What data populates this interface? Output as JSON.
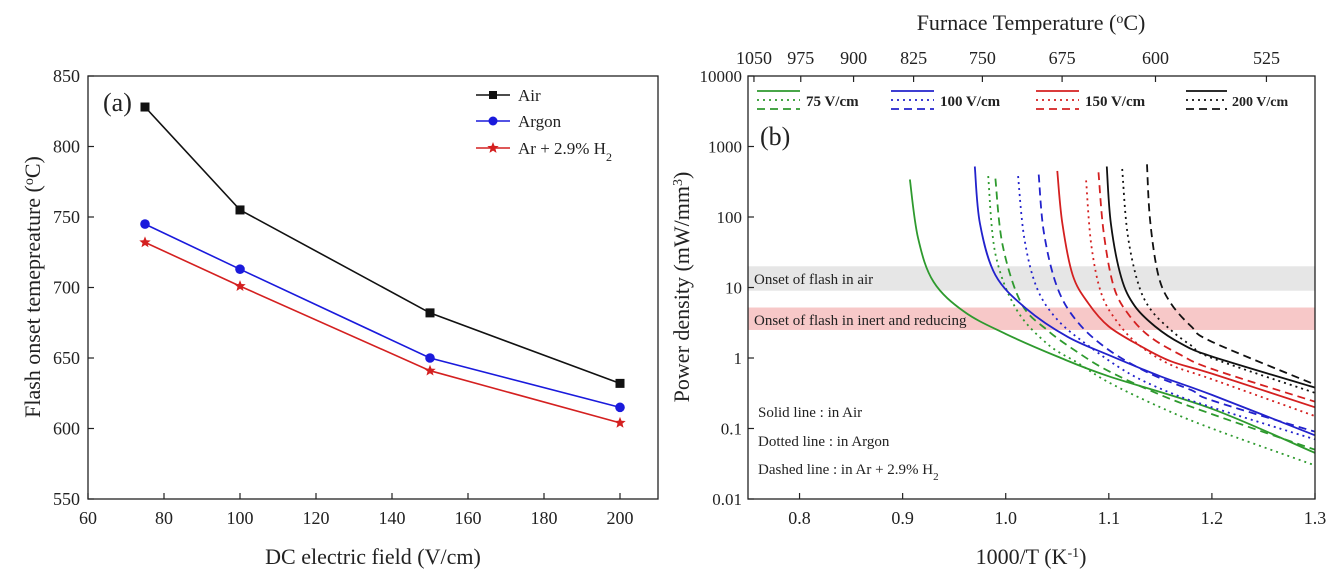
{
  "chart_data": [
    {
      "type": "line",
      "panel_label": "(a)",
      "xlabel": "DC electric field (V/cm)",
      "ylabel": "Flash onset temepreature (°C)",
      "ylabel_parts": {
        "before": "Flash onset temepreature (",
        "sup": "o",
        "after": "C)"
      },
      "xlim": [
        60,
        210
      ],
      "ylim": [
        550,
        850
      ],
      "xticks": [
        60,
        80,
        100,
        120,
        140,
        160,
        180,
        200
      ],
      "yticks": [
        550,
        600,
        650,
        700,
        750,
        800,
        850
      ],
      "x": [
        75,
        100,
        150,
        200
      ],
      "series": [
        {
          "name": "Air",
          "legend_label": "Air",
          "color": "#111111",
          "marker": "square",
          "values": [
            828,
            755,
            682,
            632
          ]
        },
        {
          "name": "Argon",
          "legend_label": "Argon",
          "color": "#1a1adc",
          "marker": "circle",
          "values": [
            745,
            713,
            650,
            615
          ]
        },
        {
          "name": "Ar + 2.9% H2",
          "legend_label": "Ar + 2.9% H",
          "legend_sub": "2",
          "color": "#d42020",
          "marker": "star",
          "values": [
            732,
            701,
            641,
            604
          ]
        }
      ]
    },
    {
      "type": "line",
      "panel_label": "(b)",
      "yscale": "log",
      "xlabel": "1000/T (K-1)",
      "xlabel_parts": {
        "before": "1000/T (K",
        "sup": "-1",
        "after": ")"
      },
      "ylabel": "Power density (mW/mm3)",
      "ylabel_parts": {
        "before": "Power density (mW/mm",
        "sup": "3",
        "after": ")"
      },
      "top_xlabel": "Furnace Temperature (°C)",
      "top_xlabel_parts": {
        "before": "Furnace Temperature (",
        "sup": "o",
        "after": "C)"
      },
      "xlim": [
        0.75,
        1.3
      ],
      "ylim": [
        0.01,
        10000
      ],
      "xticks": [
        0.8,
        0.9,
        1.0,
        1.1,
        1.2,
        1.3
      ],
      "xtick_labels": [
        "0.8",
        "0.9",
        "1.0",
        "1.1",
        "1.2",
        "1.3"
      ],
      "yticks": [
        0.01,
        0.1,
        1,
        10,
        100,
        1000,
        10000
      ],
      "ytick_labels": [
        "0.01",
        "0.1",
        "1",
        "10",
        "100",
        "1000",
        "10000"
      ],
      "top_ticks_celsius": [
        1050,
        975,
        900,
        825,
        750,
        675,
        600,
        525
      ],
      "bands": [
        {
          "label": "Onset of flash in air",
          "y_range": [
            9,
            20
          ],
          "color": "#e6e6e6"
        },
        {
          "label": "Onset of flash in inert and reducing",
          "y_range": [
            2.5,
            5.2
          ],
          "color": "#f7c8c8"
        }
      ],
      "field_legend": [
        {
          "label": "75 V/cm",
          "color": "#2e9a2e"
        },
        {
          "label": "100 V/cm",
          "color": "#2222cc"
        },
        {
          "label": "150 V/cm",
          "color": "#d42020"
        },
        {
          "label": "200 V/cm",
          "color": "#111111"
        }
      ],
      "style_notes": [
        {
          "text": "Solid line : in Air"
        },
        {
          "text": "Dotted line : in Argon"
        },
        {
          "text": "Dashed line : in Ar + 2.9% H2",
          "before": "Dashed line : in Ar + 2.9% H",
          "sub": "2"
        }
      ],
      "series": [
        {
          "name": "75 V/cm, Air",
          "color": "#2e9a2e",
          "style": "solid",
          "x": [
            0.907,
            0.915,
            0.93,
            0.96,
            1.0,
            1.05,
            1.1,
            1.2,
            1.3
          ],
          "y": [
            340,
            50,
            12,
            4.5,
            2.2,
            1.05,
            0.55,
            0.19,
            0.045
          ]
        },
        {
          "name": "75 V/cm, Argon",
          "color": "#2e9a2e",
          "style": "dotted",
          "x": [
            0.983,
            0.99,
            1.01,
            1.04,
            1.07,
            1.1,
            1.15,
            1.2,
            1.3
          ],
          "y": [
            380,
            30,
            5,
            1.6,
            0.85,
            0.45,
            0.2,
            0.1,
            0.03
          ]
        },
        {
          "name": "75 V/cm, Ar + 2.9% H2",
          "color": "#2e9a2e",
          "style": "dashed",
          "x": [
            0.99,
            0.997,
            1.015,
            1.04,
            1.07,
            1.1,
            1.15,
            1.2,
            1.3
          ],
          "y": [
            350,
            40,
            6,
            2.5,
            1.2,
            0.65,
            0.3,
            0.16,
            0.05
          ]
        },
        {
          "name": "100 V/cm, Air",
          "color": "#2222cc",
          "style": "solid",
          "x": [
            0.97,
            0.975,
            0.99,
            1.02,
            1.06,
            1.1,
            1.15,
            1.2,
            1.3
          ],
          "y": [
            520,
            80,
            15,
            5,
            2,
            1.1,
            0.55,
            0.3,
            0.08
          ]
        },
        {
          "name": "100 V/cm, Argon",
          "color": "#2222cc",
          "style": "dotted",
          "x": [
            1.012,
            1.018,
            1.03,
            1.05,
            1.08,
            1.12,
            1.16,
            1.2,
            1.3
          ],
          "y": [
            380,
            50,
            10,
            3.5,
            1.5,
            0.6,
            0.32,
            0.2,
            0.07
          ]
        },
        {
          "name": "100 V/cm, Ar + 2.9% H2",
          "color": "#2222cc",
          "style": "dashed",
          "x": [
            1.032,
            1.037,
            1.05,
            1.07,
            1.1,
            1.14,
            1.18,
            1.2,
            1.3
          ],
          "y": [
            400,
            60,
            10,
            3.2,
            1.3,
            0.6,
            0.35,
            0.25,
            0.09
          ]
        },
        {
          "name": "150 V/cm, Air",
          "color": "#d42020",
          "style": "solid",
          "x": [
            1.05,
            1.055,
            1.065,
            1.08,
            1.1,
            1.13,
            1.16,
            1.2,
            1.3
          ],
          "y": [
            450,
            80,
            15,
            6,
            2.8,
            1.5,
            0.9,
            0.6,
            0.2
          ]
        },
        {
          "name": "150 V/cm, Argon",
          "color": "#d42020",
          "style": "dotted",
          "x": [
            1.078,
            1.083,
            1.093,
            1.11,
            1.13,
            1.16,
            1.2,
            1.3
          ],
          "y": [
            330,
            40,
            8,
            3,
            1.5,
            0.8,
            0.5,
            0.15
          ]
        },
        {
          "name": "150 V/cm, Ar + 2.9% H2",
          "color": "#d42020",
          "style": "dashed",
          "x": [
            1.09,
            1.095,
            1.105,
            1.12,
            1.14,
            1.17,
            1.2,
            1.3
          ],
          "y": [
            430,
            60,
            10,
            4,
            2,
            1.1,
            0.7,
            0.24
          ]
        },
        {
          "name": "200 V/cm, Air",
          "color": "#111111",
          "style": "solid",
          "x": [
            1.098,
            1.102,
            1.112,
            1.125,
            1.145,
            1.17,
            1.2,
            1.3
          ],
          "y": [
            520,
            80,
            14,
            5.5,
            2.8,
            1.6,
            1.05,
            0.38
          ]
        },
        {
          "name": "200 V/cm, Argon",
          "color": "#111111",
          "style": "dotted",
          "x": [
            1.113,
            1.118,
            1.128,
            1.14,
            1.16,
            1.18,
            1.2,
            1.3
          ],
          "y": [
            480,
            60,
            12,
            5,
            2.5,
            1.5,
            1.0,
            0.32
          ]
        },
        {
          "name": "200 V/cm, Ar + 2.9% H2",
          "color": "#111111",
          "style": "dashed",
          "x": [
            1.137,
            1.14,
            1.148,
            1.16,
            1.18,
            1.2,
            1.3
          ],
          "y": [
            560,
            90,
            15,
            6,
            2.8,
            1.7,
            0.42
          ]
        }
      ]
    }
  ]
}
